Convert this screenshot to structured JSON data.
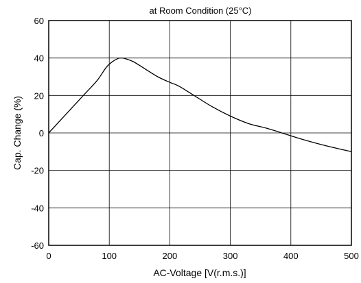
{
  "chart_data": {
    "type": "line",
    "title": "at Room Condition (25°C)",
    "xlabel": "AC-Voltage [V(r.m.s.)]",
    "ylabel": "Cap. Change (%)",
    "xlim": [
      0,
      500
    ],
    "ylim": [
      -60,
      60
    ],
    "xticks": [
      0,
      100,
      200,
      300,
      400,
      500
    ],
    "yticks": [
      -60,
      -40,
      -20,
      0,
      20,
      40,
      60
    ],
    "grid": true,
    "series": [
      {
        "color": "#000000",
        "x": [
          0,
          20,
          40,
          60,
          80,
          95,
          105,
          115,
          120,
          125,
          140,
          160,
          180,
          200,
          215,
          240,
          270,
          300,
          330,
          360,
          390,
          420,
          460,
          500
        ],
        "y": [
          0,
          7,
          14,
          21,
          28,
          35,
          38,
          39.8,
          40,
          39.8,
          38,
          34,
          30,
          27,
          25,
          20,
          14,
          9,
          5,
          2.5,
          -0.5,
          -3.5,
          -7,
          -10
        ]
      }
    ]
  }
}
